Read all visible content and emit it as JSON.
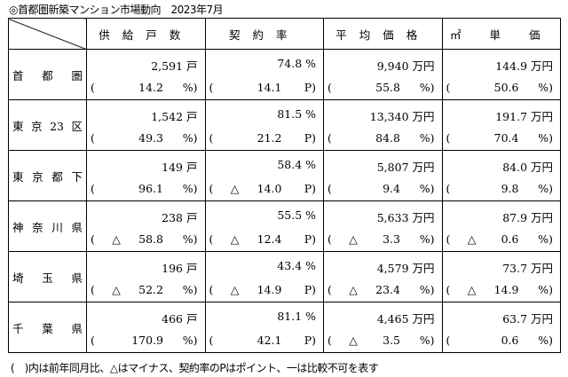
{
  "title": "◎首都圏新築マンション市場動向　2023年7月",
  "headers": [
    "供給戸数",
    "契約率",
    "平均価格",
    "㎡ 単 価"
  ],
  "rows": [
    {
      "region": "首都圏",
      "cells": [
        {
          "value": "2,591 戸",
          "tri": "",
          "change": "14.2",
          "unit": "%)"
        },
        {
          "value": "74.8 %",
          "tri": "",
          "change": "14.1",
          "unit": "P)"
        },
        {
          "value": "9,940 万円",
          "tri": "",
          "change": "55.8",
          "unit": "%)"
        },
        {
          "value": "144.9 万円",
          "tri": "",
          "change": "50.6",
          "unit": "%)"
        }
      ]
    },
    {
      "region": "東京23区",
      "cells": [
        {
          "value": "1,542 戸",
          "tri": "",
          "change": "49.3",
          "unit": "%)"
        },
        {
          "value": "81.5 %",
          "tri": "",
          "change": "21.2",
          "unit": "P)"
        },
        {
          "value": "13,340 万円",
          "tri": "",
          "change": "84.8",
          "unit": "%)"
        },
        {
          "value": "191.7 万円",
          "tri": "",
          "change": "70.4",
          "unit": "%)"
        }
      ]
    },
    {
      "region": "東京都下",
      "cells": [
        {
          "value": "149 戸",
          "tri": "",
          "change": "96.1",
          "unit": "%)"
        },
        {
          "value": "58.4 %",
          "tri": "△",
          "change": "14.0",
          "unit": "P)"
        },
        {
          "value": "5,807 万円",
          "tri": "",
          "change": "9.4",
          "unit": "%)"
        },
        {
          "value": "84.0 万円",
          "tri": "",
          "change": "9.8",
          "unit": "%)"
        }
      ]
    },
    {
      "region": "神奈川県",
      "cells": [
        {
          "value": "238 戸",
          "tri": "△",
          "change": "58.8",
          "unit": "%)"
        },
        {
          "value": "55.5 %",
          "tri": "△",
          "change": "12.4",
          "unit": "P)"
        },
        {
          "value": "5,633 万円",
          "tri": "△",
          "change": "3.3",
          "unit": "%)"
        },
        {
          "value": "87.9 万円",
          "tri": "△",
          "change": "0.6",
          "unit": "%)"
        }
      ]
    },
    {
      "region": "埼玉県",
      "cells": [
        {
          "value": "196 戸",
          "tri": "△",
          "change": "52.2",
          "unit": "%)"
        },
        {
          "value": "43.4 %",
          "tri": "△",
          "change": "14.9",
          "unit": "P)"
        },
        {
          "value": "4,579 万円",
          "tri": "△",
          "change": "23.4",
          "unit": "%)"
        },
        {
          "value": "73.7 万円",
          "tri": "△",
          "change": "14.9",
          "unit": "%)"
        }
      ]
    },
    {
      "region": "千葉県",
      "cells": [
        {
          "value": "466 戸",
          "tri": "",
          "change": "170.9",
          "unit": "%)"
        },
        {
          "value": "81.1 %",
          "tri": "",
          "change": "42.1",
          "unit": "P)"
        },
        {
          "value": "4,465 万円",
          "tri": "△",
          "change": "3.5",
          "unit": "%)"
        },
        {
          "value": "63.7 万円",
          "tri": "",
          "change": "0.6",
          "unit": "%)"
        }
      ]
    }
  ],
  "open_paren": "(",
  "note": "(　)内は前年同月比、△はマイナス、契約率のPはポイント、一は比較不可を表す"
}
